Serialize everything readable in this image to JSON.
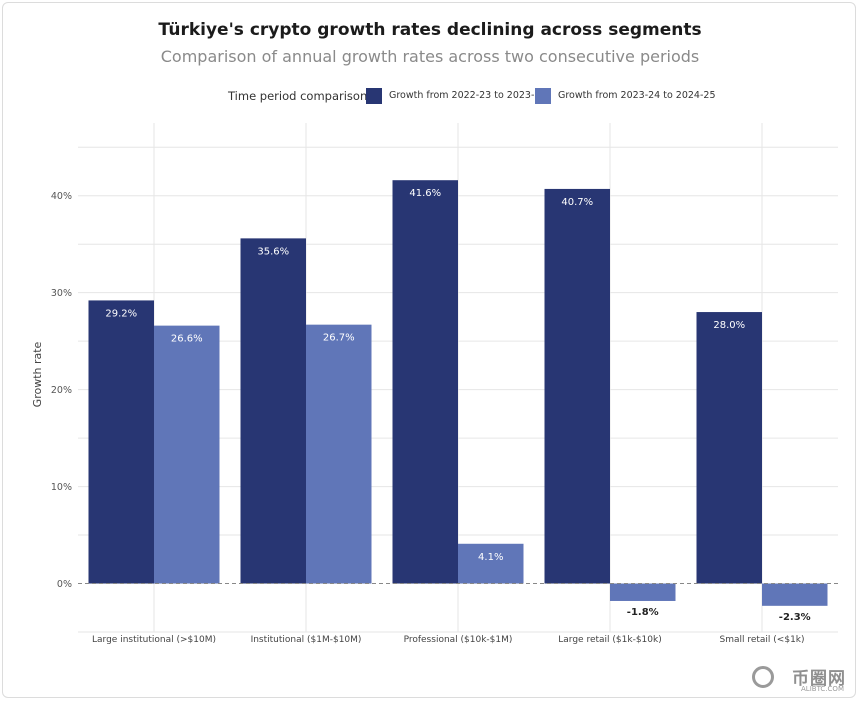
{
  "chart_data": {
    "type": "bar",
    "title": "Türkiye's crypto growth rates declining across segments",
    "subtitle": "Comparison of annual growth rates across two consecutive periods",
    "ylabel": "Growth rate",
    "xlabel": "",
    "legend_title": "Time period comparison",
    "legend_position": "top",
    "grid": true,
    "ylim": [
      -5,
      47.5
    ],
    "yticks": [
      0,
      10,
      20,
      30,
      40
    ],
    "ytick_labels": [
      "0%",
      "10%",
      "20%",
      "30%",
      "40%"
    ],
    "categories": [
      "Large institutional (>$10M)",
      "Institutional ($1M-$10M)",
      "Professional ($10k-$1M)",
      "Large retail ($1k-$10k)",
      "Small retail (<$1k)"
    ],
    "series": [
      {
        "name": "Growth from 2022-23 to 2023-24",
        "color": "#283673",
        "values": [
          29.2,
          35.6,
          41.6,
          40.7,
          28.0
        ],
        "labels": [
          "29.2%",
          "35.6%",
          "41.6%",
          "40.7%",
          "28.0%"
        ]
      },
      {
        "name": "Growth from 2023-24 to 2024-25",
        "color": "#6076b8",
        "values": [
          26.6,
          26.7,
          4.1,
          -1.8,
          -2.3
        ],
        "labels": [
          "26.6%",
          "26.7%",
          "4.1%",
          "-1.8%",
          "-2.3%"
        ]
      }
    ]
  },
  "watermark": {
    "text": "币圈网",
    "subtext": "ALIBTC.COM"
  }
}
